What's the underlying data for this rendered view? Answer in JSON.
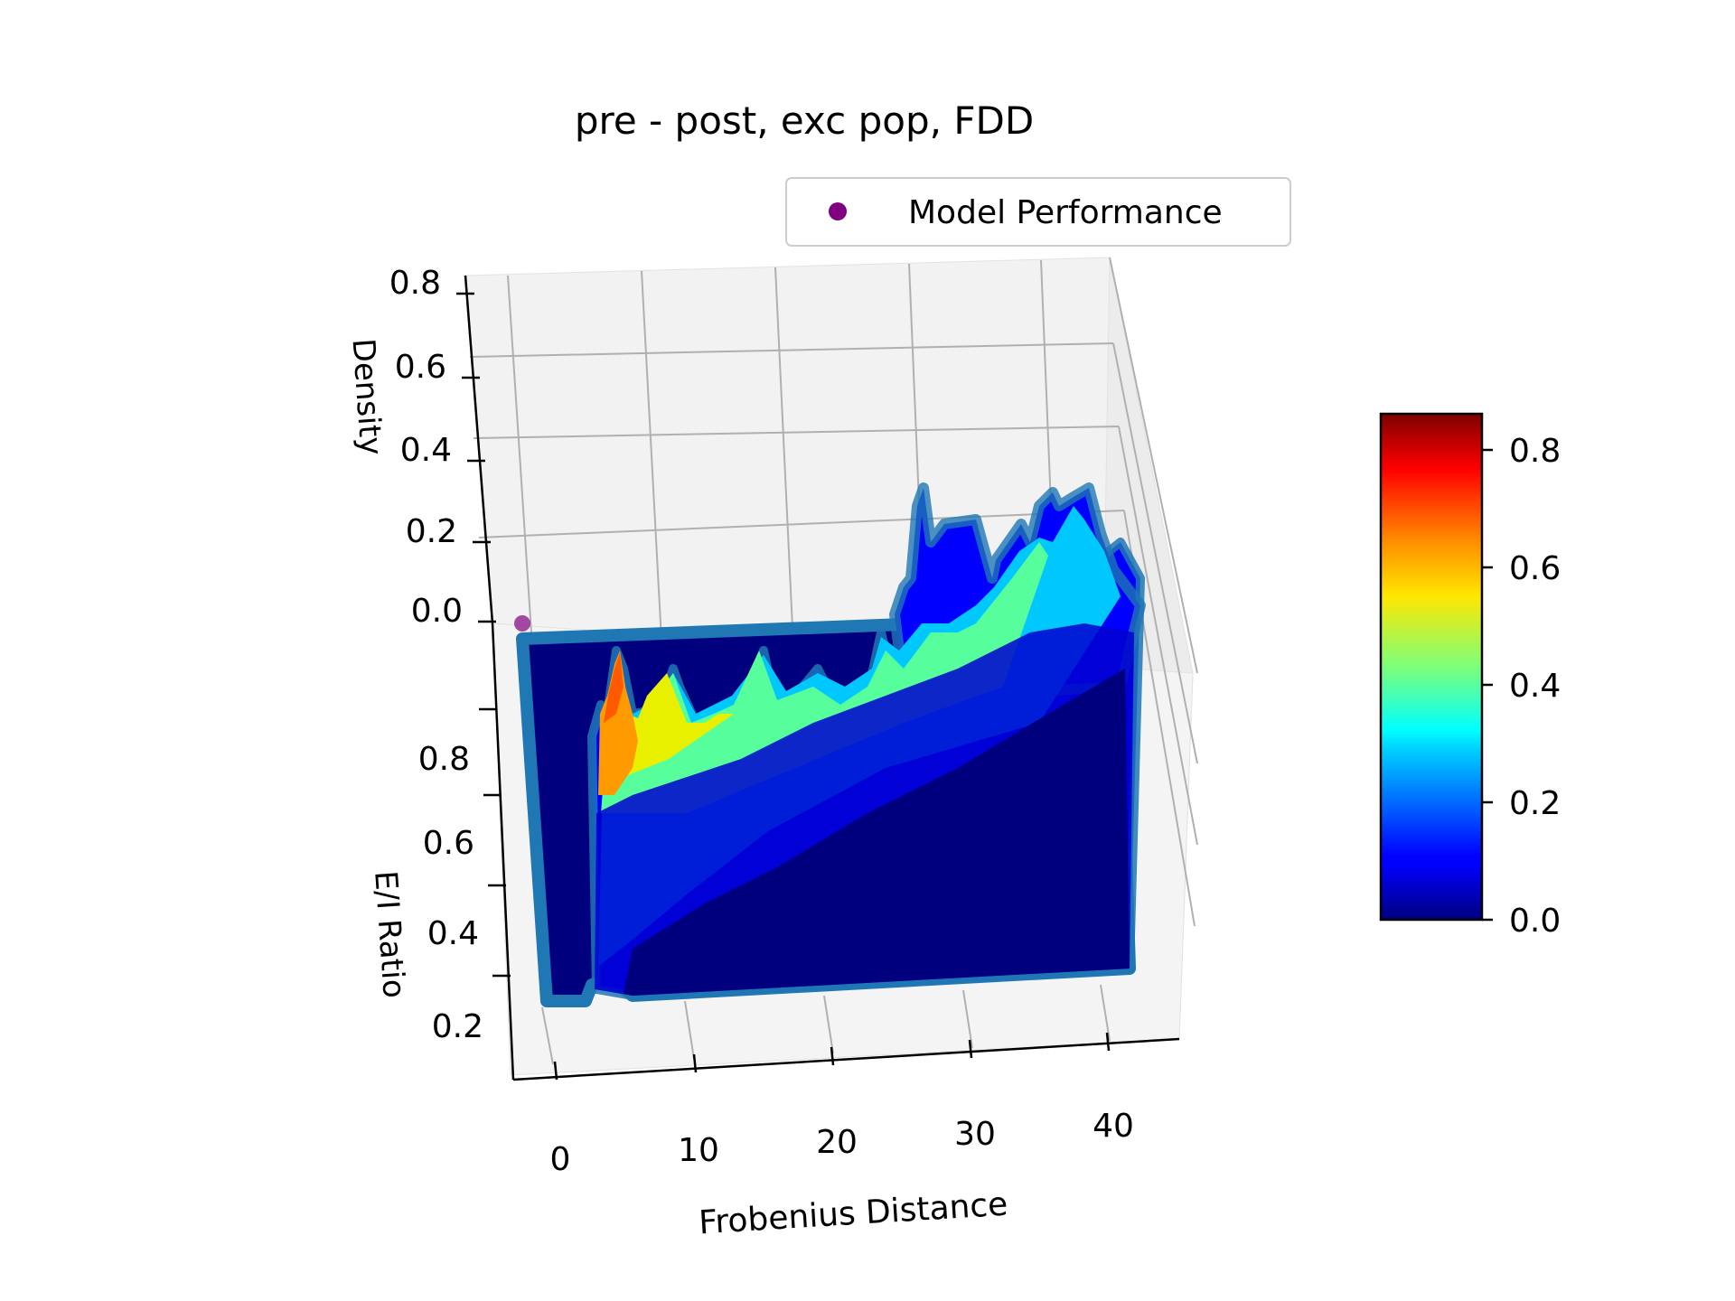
{
  "chart_data": {
    "type": "surface3d",
    "title": "pre - post, exc pop, FDD",
    "xlabel": "Frobenius Distance",
    "ylabel": "E/I Ratio",
    "zlabel": "Density",
    "x_ticks": [
      "0",
      "10",
      "20",
      "30",
      "40"
    ],
    "y_ticks": [
      "0.2",
      "0.4",
      "0.6",
      "0.8"
    ],
    "z_ticks": [
      "0.0",
      "0.2",
      "0.4",
      "0.6",
      "0.8"
    ],
    "xlim": [
      -2,
      45
    ],
    "ylim": [
      0.1,
      1.0
    ],
    "zlim": [
      0.0,
      0.8
    ],
    "colorbar": {
      "colormap": "jet",
      "ticks": [
        "0.0",
        "0.2",
        "0.4",
        "0.6",
        "0.8"
      ],
      "range": [
        0.0,
        0.86
      ]
    },
    "legend": {
      "position": "top-right",
      "entries": [
        {
          "label": "Model Performance",
          "color": "#800080",
          "marker": "circle"
        }
      ]
    },
    "ridge_peak_density": [
      [
        3.5,
        0.55
      ],
      [
        5,
        0.35
      ],
      [
        7,
        0.42
      ],
      [
        9,
        0.38
      ],
      [
        11,
        0.33
      ],
      [
        13,
        0.36
      ],
      [
        15,
        0.3
      ],
      [
        17,
        0.42
      ],
      [
        19,
        0.28
      ],
      [
        21,
        0.33
      ],
      [
        23,
        0.3
      ],
      [
        25,
        0.36
      ],
      [
        27,
        0.32
      ],
      [
        29,
        0.4
      ],
      [
        31,
        0.35
      ],
      [
        33,
        0.45
      ],
      [
        35,
        0.33
      ],
      [
        37,
        0.46
      ],
      [
        39,
        0.34
      ],
      [
        41,
        0.3
      ],
      [
        43,
        0.18
      ]
    ],
    "model_performance_point": {
      "x": -1,
      "y": 1.0,
      "z": 0.0
    },
    "grid": true
  }
}
